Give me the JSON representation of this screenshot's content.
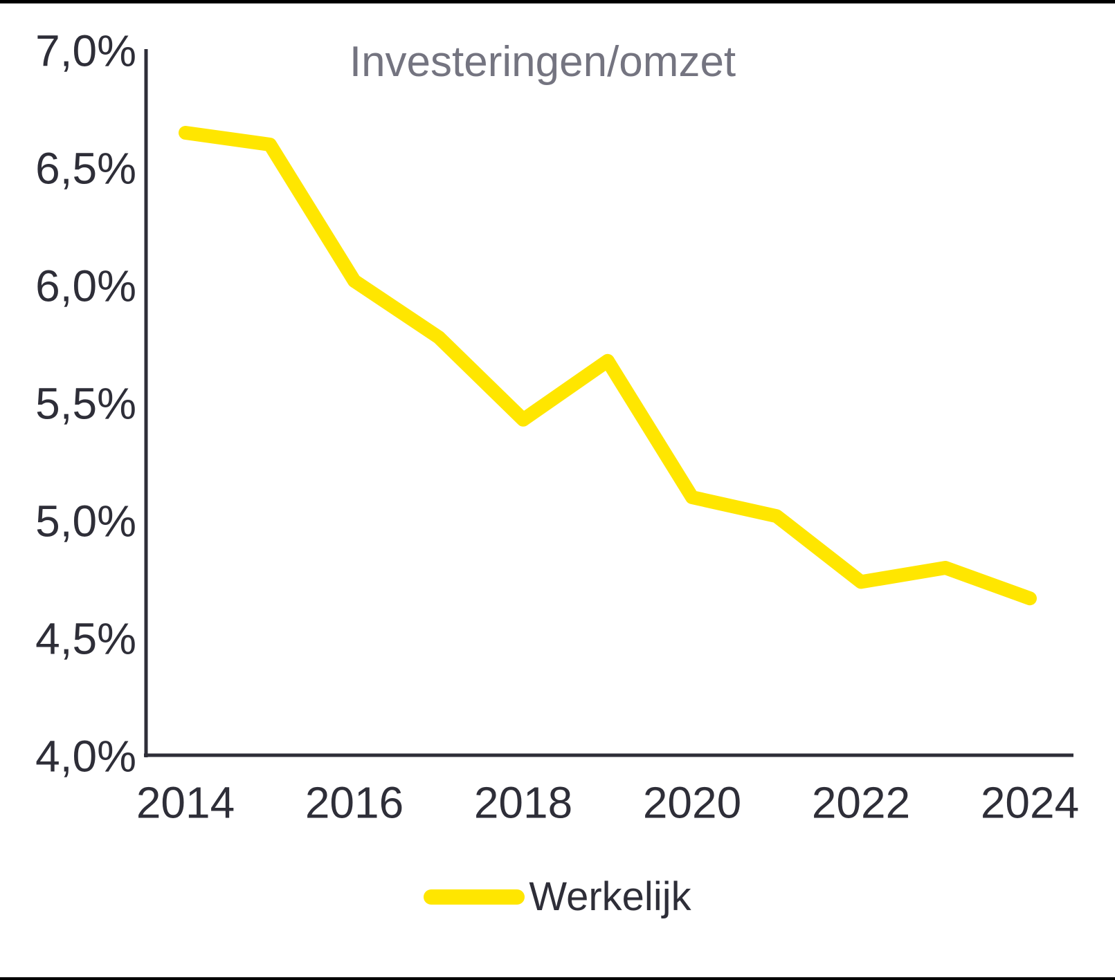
{
  "chart_data": {
    "type": "line",
    "title": "Investeringen/omzet",
    "x": [
      2014,
      2015,
      2016,
      2017,
      2018,
      2019,
      2020,
      2021,
      2022,
      2023,
      2024
    ],
    "series": [
      {
        "name": "Werkelijk",
        "values": [
          6.65,
          6.6,
          6.02,
          5.78,
          5.43,
          5.68,
          5.1,
          5.02,
          4.74,
          4.8,
          4.67
        ],
        "color": "#FFE600"
      }
    ],
    "ylim": [
      4.0,
      7.0
    ],
    "ytick_values": [
      7.0,
      6.5,
      6.0,
      5.5,
      5.0,
      4.5,
      4.0
    ],
    "ytick_labels": [
      "7,0%",
      "6,5%",
      "6,0%",
      "5,5%",
      "5,0%",
      "4,5%",
      "4,0%"
    ],
    "xtick_values": [
      2014,
      2016,
      2018,
      2020,
      2022,
      2024
    ],
    "xtick_labels": [
      "2014",
      "2016",
      "2018",
      "2020",
      "2022",
      "2024"
    ],
    "grid": false,
    "legend_position": "bottom",
    "axis_color": "#2E2E38",
    "title_color": "#747480",
    "background_color": "#FFFFFF",
    "border_color": "#000000"
  },
  "legend": {
    "label": "Werkelijk"
  }
}
